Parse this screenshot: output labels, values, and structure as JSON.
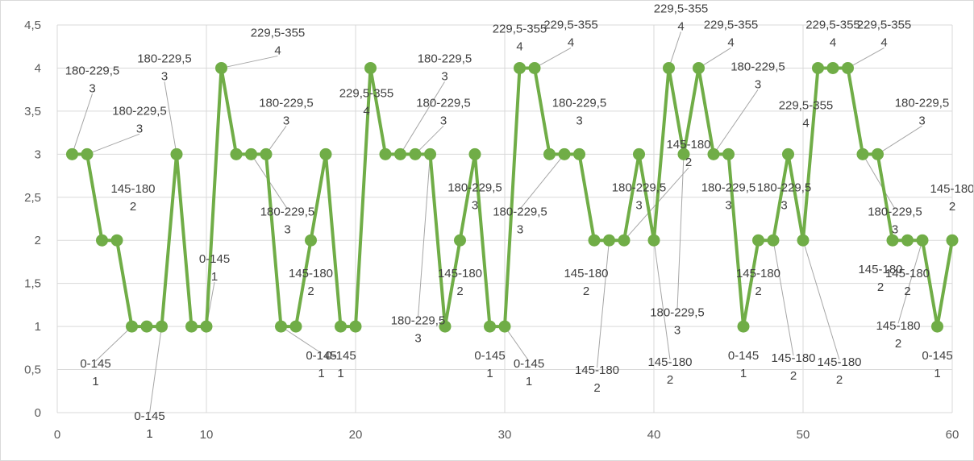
{
  "chart_data": {
    "type": "line",
    "title": "",
    "xlabel": "",
    "ylabel": "",
    "xlim": [
      0,
      60
    ],
    "ylim": [
      0,
      4.5
    ],
    "x_ticks": [
      0,
      10,
      20,
      30,
      40,
      50,
      60
    ],
    "y_ticks": [
      "0",
      "0,5",
      "1",
      "1,5",
      "2",
      "2,5",
      "3",
      "3,5",
      "4",
      "4,5"
    ],
    "grid": "vertical and horizontal major gridlines",
    "series": [
      {
        "color": "#70ad47",
        "points": [
          {
            "x": 1,
            "y": 3,
            "label": "180-229,5\n3"
          },
          {
            "x": 2,
            "y": 3,
            "label": "180-229,5\n3"
          },
          {
            "x": 3,
            "y": 2
          },
          {
            "x": 4,
            "y": 2,
            "label": "145-180\n2"
          },
          {
            "x": 5,
            "y": 1,
            "label": "0-145\n1"
          },
          {
            "x": 6,
            "y": 1
          },
          {
            "x": 7,
            "y": 1,
            "label": "0-145\n1"
          },
          {
            "x": 8,
            "y": 3,
            "label": "180-229,5\n3"
          },
          {
            "x": 9,
            "y": 1
          },
          {
            "x": 10,
            "y": 1,
            "label": "0-145\n1"
          },
          {
            "x": 11,
            "y": 4,
            "label": "229,5-355\n4"
          },
          {
            "x": 12,
            "y": 3
          },
          {
            "x": 13,
            "y": 3,
            "label": "180-229,5\n3"
          },
          {
            "x": 14,
            "y": 3,
            "label": "180-229,5\n3"
          },
          {
            "x": 15,
            "y": 1,
            "label": "0-145\n1"
          },
          {
            "x": 16,
            "y": 1
          },
          {
            "x": 17,
            "y": 2,
            "label": "145-180\n2"
          },
          {
            "x": 18,
            "y": 3
          },
          {
            "x": 19,
            "y": 1,
            "label": "0-145\n1"
          },
          {
            "x": 20,
            "y": 1
          },
          {
            "x": 21,
            "y": 4,
            "label": "229,5-355\n4"
          },
          {
            "x": 22,
            "y": 3
          },
          {
            "x": 23,
            "y": 3,
            "label": "180-229,5\n3"
          },
          {
            "x": 24,
            "y": 3,
            "label": "180-229,5\n3"
          },
          {
            "x": 25,
            "y": 3,
            "label": "180-229,5\n3"
          },
          {
            "x": 26,
            "y": 1
          },
          {
            "x": 27,
            "y": 2,
            "label": "145-180\n2"
          },
          {
            "x": 28,
            "y": 3,
            "label": "180-229,5\n3"
          },
          {
            "x": 29,
            "y": 1,
            "label": "0-145\n1"
          },
          {
            "x": 30,
            "y": 1,
            "label": "0-145\n1"
          },
          {
            "x": 31,
            "y": 4,
            "label": "229,5-355\n4"
          },
          {
            "x": 32,
            "y": 4,
            "label": "229,5-355\n4"
          },
          {
            "x": 33,
            "y": 3
          },
          {
            "x": 34,
            "y": 3,
            "label": "180-229,5\n3"
          },
          {
            "x": 35,
            "y": 3,
            "label": "180-229,5\n3"
          },
          {
            "x": 36,
            "y": 2,
            "label": "145-180\n2"
          },
          {
            "x": 37,
            "y": 2,
            "label": "145-180\n2"
          },
          {
            "x": 38,
            "y": 2,
            "label": "145-180\n2"
          },
          {
            "x": 39,
            "y": 3,
            "label": "180-229,5\n3"
          },
          {
            "x": 40,
            "y": 2,
            "label": "145-180\n2"
          },
          {
            "x": 41,
            "y": 4,
            "label": "229,5-355\n4"
          },
          {
            "x": 42,
            "y": 3,
            "label": "180-229,5\n3"
          },
          {
            "x": 43,
            "y": 4,
            "label": "229,5-355\n4"
          },
          {
            "x": 44,
            "y": 3,
            "label": "180-229,5\n3"
          },
          {
            "x": 45,
            "y": 3,
            "label": "180-229,5\n3"
          },
          {
            "x": 46,
            "y": 1,
            "label": "0-145\n1"
          },
          {
            "x": 47,
            "y": 2,
            "label": "145-180\n2"
          },
          {
            "x": 48,
            "y": 2,
            "label": "145-180\n2"
          },
          {
            "x": 49,
            "y": 3,
            "label": "180-229,5\n3"
          },
          {
            "x": 50,
            "y": 2,
            "label": "145-180\n2"
          },
          {
            "x": 51,
            "y": 4,
            "label": "229,5-355\n4"
          },
          {
            "x": 52,
            "y": 4,
            "label": "229,5-355\n4"
          },
          {
            "x": 53,
            "y": 4,
            "label": "229,5-355\n4"
          },
          {
            "x": 54,
            "y": 3,
            "label": "180-229,5\n3"
          },
          {
            "x": 55,
            "y": 3,
            "label": "180-229,5\n3"
          },
          {
            "x": 56,
            "y": 2,
            "label": "145-180\n2"
          },
          {
            "x": 57,
            "y": 2,
            "label": "145-180\n2"
          },
          {
            "x": 58,
            "y": 2,
            "label": "145-180\n2"
          },
          {
            "x": 59,
            "y": 1,
            "label": "0-145\n1"
          },
          {
            "x": 60,
            "y": 2,
            "label": "145-180\n2"
          }
        ]
      }
    ],
    "colors": {
      "line": "#70ad47",
      "grid": "#d9d9d9",
      "leader": "#a6a6a6",
      "tick_text": "#595959",
      "label_text": "#404040"
    }
  }
}
